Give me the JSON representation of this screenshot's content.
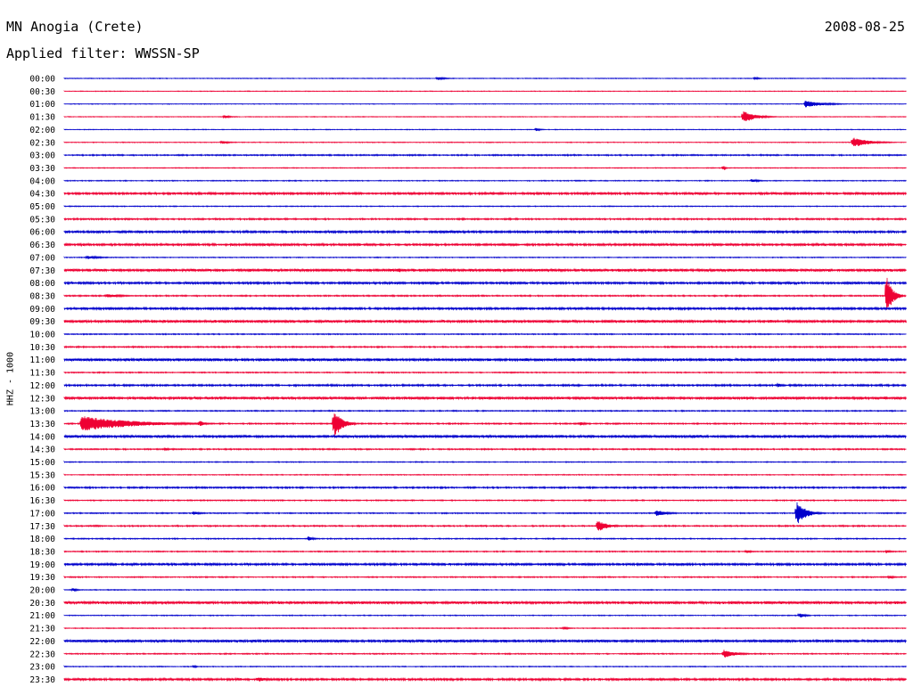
{
  "header": {
    "station": "MN Anogia (Crete)",
    "date": "2008-08-25",
    "filter": "Applied filter: WWSSN-SP"
  },
  "chart_data": {
    "type": "line",
    "title": "MN Anogia (Crete)",
    "ylabel": "HHZ - 1000",
    "x_range_minutes": [
      0,
      30
    ],
    "row_labels": [
      "00:00",
      "00:30",
      "01:00",
      "01:30",
      "02:00",
      "02:30",
      "03:00",
      "03:30",
      "04:00",
      "04:30",
      "05:00",
      "05:30",
      "06:00",
      "06:30",
      "07:00",
      "07:30",
      "08:00",
      "08:30",
      "09:00",
      "09:30",
      "10:00",
      "10:30",
      "11:00",
      "11:30",
      "12:00",
      "12:30",
      "13:00",
      "13:30",
      "14:00",
      "14:30",
      "15:00",
      "15:30",
      "16:00",
      "16:30",
      "17:00",
      "17:30",
      "18:00",
      "18:30",
      "19:00",
      "19:30",
      "20:00",
      "20:30",
      "21:00",
      "21:30",
      "22:00",
      "22:30",
      "23:00",
      "23:30"
    ],
    "colors": [
      "#0000cc",
      "#ee0033"
    ],
    "noise_levels": [
      0.3,
      0.3,
      0.3,
      0.3,
      0.3,
      0.35,
      0.6,
      0.35,
      0.4,
      1.0,
      0.4,
      0.7,
      1.0,
      1.0,
      0.4,
      1.2,
      1.0,
      0.6,
      1.0,
      1.2,
      0.5,
      0.6,
      1.2,
      0.5,
      0.8,
      1.2,
      0.5,
      0.6,
      1.2,
      0.6,
      0.4,
      0.4,
      0.7,
      0.5,
      0.5,
      0.6,
      0.5,
      0.5,
      1.0,
      0.5,
      0.4,
      1.2,
      0.4,
      0.4,
      1.2,
      0.5,
      0.4,
      1.0
    ],
    "events": [
      {
        "row": 0,
        "minute": 13.3,
        "amplitude": 2,
        "duration_min": 0.8
      },
      {
        "row": 0,
        "minute": 24.6,
        "amplitude": 2,
        "duration_min": 0.4
      },
      {
        "row": 2,
        "minute": 26.4,
        "amplitude": 4,
        "duration_min": 1.8
      },
      {
        "row": 3,
        "minute": 24.2,
        "amplitude": 7,
        "duration_min": 1.2
      },
      {
        "row": 3,
        "minute": 5.7,
        "amplitude": 2,
        "duration_min": 0.6
      },
      {
        "row": 4,
        "minute": 16.8,
        "amplitude": 2,
        "duration_min": 0.5
      },
      {
        "row": 5,
        "minute": 28.1,
        "amplitude": 6,
        "duration_min": 1.6
      },
      {
        "row": 5,
        "minute": 5.6,
        "amplitude": 2,
        "duration_min": 0.8
      },
      {
        "row": 7,
        "minute": 23.5,
        "amplitude": 3,
        "duration_min": 0.2
      },
      {
        "row": 8,
        "minute": 24.5,
        "amplitude": 2,
        "duration_min": 0.8
      },
      {
        "row": 14,
        "minute": 0.8,
        "amplitude": 2,
        "duration_min": 1.5
      },
      {
        "row": 15,
        "minute": 11.9,
        "amplitude": 3,
        "duration_min": 0.5
      },
      {
        "row": 17,
        "minute": 1.5,
        "amplitude": 2,
        "duration_min": 2.0
      },
      {
        "row": 17,
        "minute": 29.3,
        "amplitude": 25,
        "duration_min": 0.6
      },
      {
        "row": 24,
        "minute": 25.4,
        "amplitude": 3,
        "duration_min": 0.5
      },
      {
        "row": 27,
        "minute": 0.6,
        "amplitude": 9,
        "duration_min": 5.0
      },
      {
        "row": 27,
        "minute": 4.8,
        "amplitude": 4,
        "duration_min": 0.6
      },
      {
        "row": 27,
        "minute": 9.6,
        "amplitude": 18,
        "duration_min": 0.8
      },
      {
        "row": 27,
        "minute": 18.4,
        "amplitude": 2,
        "duration_min": 0.6
      },
      {
        "row": 28,
        "minute": 25.2,
        "amplitude": 2,
        "duration_min": 0.4
      },
      {
        "row": 29,
        "minute": 3.6,
        "amplitude": 2,
        "duration_min": 0.4
      },
      {
        "row": 34,
        "minute": 4.6,
        "amplitude": 2,
        "duration_min": 0.8
      },
      {
        "row": 34,
        "minute": 21.1,
        "amplitude": 4,
        "duration_min": 1.0
      },
      {
        "row": 34,
        "minute": 26.1,
        "amplitude": 14,
        "duration_min": 0.9
      },
      {
        "row": 35,
        "minute": 19.0,
        "amplitude": 7,
        "duration_min": 1.0
      },
      {
        "row": 36,
        "minute": 8.7,
        "amplitude": 3,
        "duration_min": 0.5
      },
      {
        "row": 37,
        "minute": 24.3,
        "amplitude": 2,
        "duration_min": 0.6
      },
      {
        "row": 37,
        "minute": 29.3,
        "amplitude": 2,
        "duration_min": 0.5
      },
      {
        "row": 39,
        "minute": 29.4,
        "amplitude": 2,
        "duration_min": 0.6
      },
      {
        "row": 40,
        "minute": 0.3,
        "amplitude": 2,
        "duration_min": 0.5
      },
      {
        "row": 42,
        "minute": 26.2,
        "amplitude": 3,
        "duration_min": 0.6
      },
      {
        "row": 43,
        "minute": 17.8,
        "amplitude": 2,
        "duration_min": 0.5
      },
      {
        "row": 45,
        "minute": 23.5,
        "amplitude": 5,
        "duration_min": 1.2
      },
      {
        "row": 46,
        "minute": 4.6,
        "amplitude": 2,
        "duration_min": 0.3
      },
      {
        "row": 47,
        "minute": 6.9,
        "amplitude": 3,
        "duration_min": 1.0
      }
    ]
  }
}
